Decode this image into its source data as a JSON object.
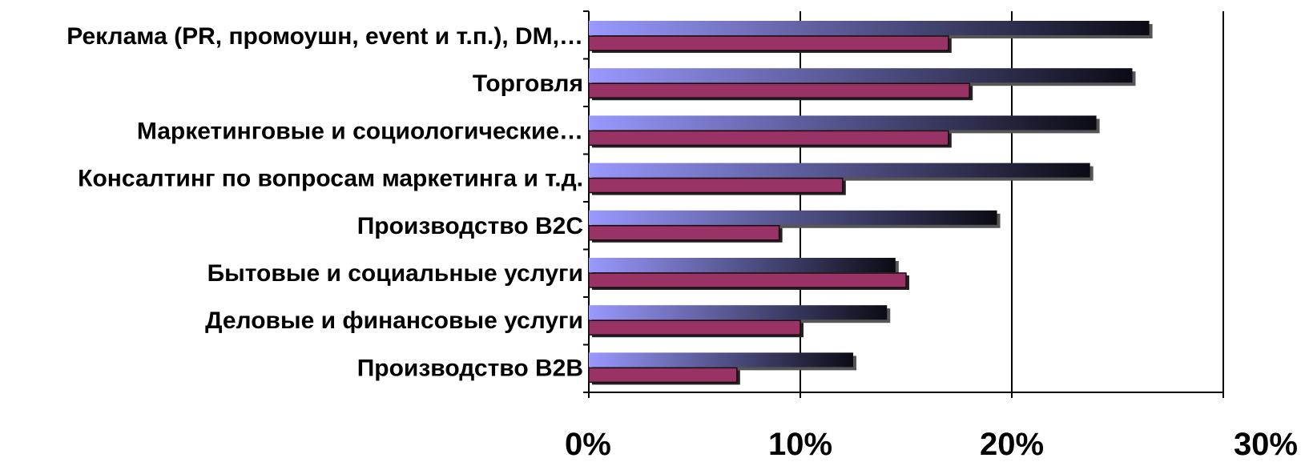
{
  "chart_data": {
    "type": "bar",
    "orientation": "horizontal",
    "categories": [
      "Реклама (PR, промоушн, event и т.п.), DM,…",
      "Торговля",
      "Маркетинговые и социологические…",
      "Консалтинг по вопросам маркетинга и т.д.",
      "Производство B2C",
      "Бытовые и социальные услуги",
      "Деловые и финансовые услуги",
      "Производство B2B"
    ],
    "series": [
      {
        "values": [
          26.5,
          25.7,
          24.0,
          23.7,
          19.3,
          14.5,
          14.1,
          12.5
        ],
        "color_start": "#9999ff",
        "color_end": "#0b0b14"
      },
      {
        "values": [
          17.0,
          18.0,
          17.0,
          12.0,
          9.0,
          15.0,
          10.0,
          7.0
        ],
        "color": "#993366"
      }
    ],
    "xlim": [
      0,
      30
    ],
    "x_ticks": [
      "0%",
      "10%",
      "20%",
      "30%"
    ],
    "x_tick_values": [
      0,
      10,
      20,
      30
    ],
    "grid": true,
    "legend": "none",
    "title": "",
    "xlabel": "",
    "ylabel": ""
  }
}
